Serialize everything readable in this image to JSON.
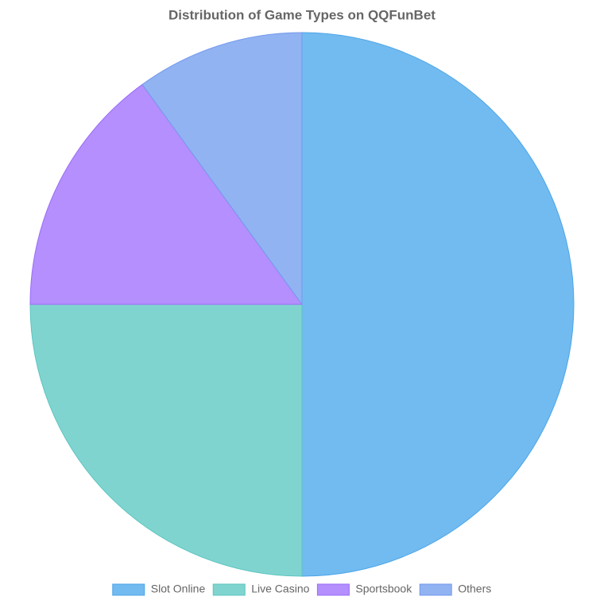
{
  "chart_data": {
    "type": "pie",
    "title": "Distribution of Game Types on QQFunBet",
    "categories": [
      "Slot Online",
      "Live Casino",
      "Sportsbook",
      "Others"
    ],
    "values": [
      50,
      25,
      15,
      10
    ],
    "colors": [
      "#71bbf0",
      "#80d4d0",
      "#b48ffd",
      "#91b3f2"
    ],
    "border_colors": [
      "#4da5e8",
      "#5cc5c0",
      "#9b6cf8",
      "#7499ee"
    ],
    "legend": "bottom"
  }
}
